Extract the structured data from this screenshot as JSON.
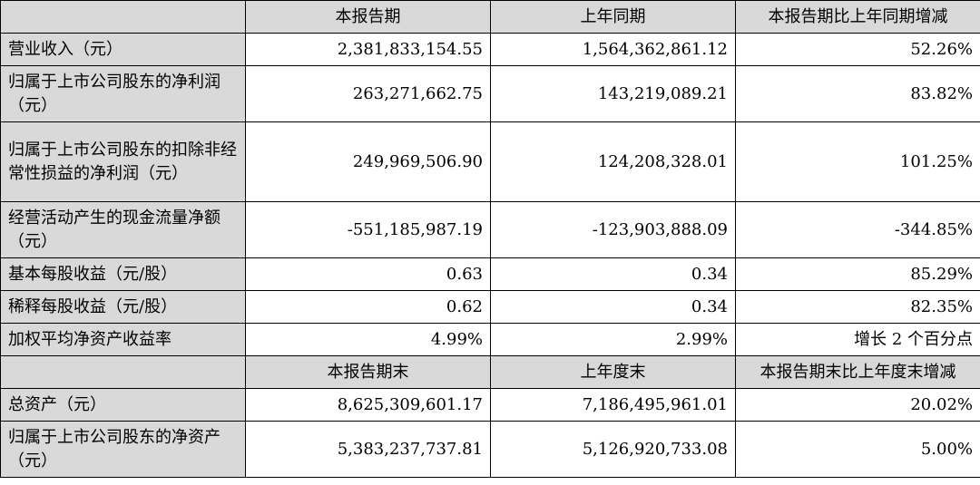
{
  "header1": {
    "blank": "",
    "col1": "本报告期",
    "col2": "上年同期",
    "col3": "本报告期比上年同期增减"
  },
  "rows1": [
    {
      "label": "营业收入（元）",
      "current": "2,381,833,154.55",
      "prior": "1,564,362,861.12",
      "change": "52.26%"
    },
    {
      "label": "归属于上市公司股东的净利润（元）",
      "current": "263,271,662.75",
      "prior": "143,219,089.21",
      "change": "83.82%"
    },
    {
      "label": "归属于上市公司股东的扣除非经常性损益的净利润（元）",
      "current": "249,969,506.90",
      "prior": "124,208,328.01",
      "change": "101.25%"
    },
    {
      "label": "经营活动产生的现金流量净额（元）",
      "current": "-551,185,987.19",
      "prior": "-123,903,888.09",
      "change": "-344.85%"
    },
    {
      "label": "基本每股收益（元/股）",
      "current": "0.63",
      "prior": "0.34",
      "change": "85.29%"
    },
    {
      "label": "稀释每股收益（元/股）",
      "current": "0.62",
      "prior": "0.34",
      "change": "82.35%"
    },
    {
      "label": "加权平均净资产收益率",
      "current": "4.99%",
      "prior": "2.99%",
      "change": "增长 2 个百分点"
    }
  ],
  "header2": {
    "blank": "",
    "col1": "本报告期末",
    "col2": "上年度末",
    "col3": "本报告期末比上年度末增减"
  },
  "rows2": [
    {
      "label": "总资产（元）",
      "current": "8,625,309,601.17",
      "prior": "7,186,495,961.01",
      "change": "20.02%"
    },
    {
      "label": "归属于上市公司股东的净资产（元）",
      "current": "5,383,237,737.81",
      "prior": "5,126,920,733.08",
      "change": "5.00%"
    }
  ]
}
